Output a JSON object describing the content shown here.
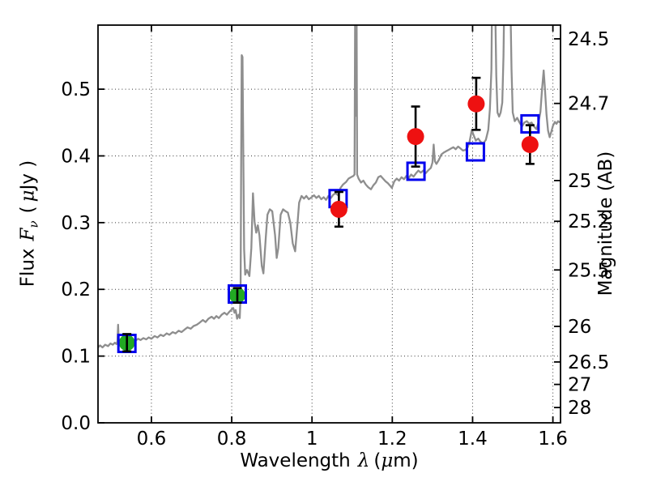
{
  "figure": {
    "background": "#ffffff"
  },
  "axes": {
    "xlabel": {
      "text": "Wavelength",
      "symbol": "λ",
      "open": "(",
      "mu": "μ",
      "close": "m)"
    },
    "ylabel_left": {
      "text": "Flux",
      "symbol": "F",
      "sub": "ν",
      "open": "(",
      "mu": "μ",
      "close": "Jy )"
    },
    "ylabel_right": "Magnitude (AB)",
    "xlim": [
      0.467,
      1.619
    ],
    "ylim": [
      0.0,
      0.596
    ],
    "x_ticks": [
      0.6,
      0.8,
      1.0,
      1.2,
      1.4,
      1.6
    ],
    "x_tick_labels": [
      "0.6",
      "0.8",
      "1",
      "1.2",
      "1.4",
      "1.6"
    ],
    "y_ticks_left": [
      0.0,
      0.1,
      0.2,
      0.3,
      0.4,
      0.5
    ],
    "y_tick_labels_left": [
      "0.0",
      "0.1",
      "0.2",
      "0.3",
      "0.4",
      "0.5"
    ],
    "y_ticks_right_mag": [
      24.5,
      24.7,
      25,
      25.2,
      25.5,
      26,
      26.5,
      27,
      28
    ],
    "y_tick_labels_right": [
      "24.5",
      "24.7",
      "25",
      "25.2",
      "25.5",
      "26",
      "26.5",
      "27",
      "28"
    ],
    "grid": true
  },
  "colors": {
    "spectrum": "#8e8e8e",
    "red_points": "#ee1111",
    "green_points": "#22aa22",
    "blue_squares": "#0000ee",
    "error_bars": "#000000",
    "grid": "#222222",
    "spine": "#000000"
  },
  "chart_data": {
    "type": "line",
    "title": "",
    "xlabel": "Wavelength lambda (micron)",
    "ylabel_left": "Flux F_nu (microJy)",
    "ylabel_right": "Magnitude (AB)",
    "xlim": [
      0.467,
      1.619
    ],
    "ylim": [
      0.0,
      0.596
    ],
    "grid": true,
    "series": [
      {
        "name": "model-spectrum",
        "style": "line",
        "points": [
          [
            0.467,
            0.113
          ],
          [
            0.472,
            0.116
          ],
          [
            0.478,
            0.113
          ],
          [
            0.485,
            0.117
          ],
          [
            0.492,
            0.115
          ],
          [
            0.498,
            0.119
          ],
          [
            0.504,
            0.117
          ],
          [
            0.509,
            0.12
          ],
          [
            0.513,
            0.118
          ],
          [
            0.5155,
            0.122
          ],
          [
            0.517,
            0.147
          ],
          [
            0.5185,
            0.125
          ],
          [
            0.521,
            0.121
          ],
          [
            0.527,
            0.124
          ],
          [
            0.533,
            0.122
          ],
          [
            0.54,
            0.124
          ],
          [
            0.547,
            0.122
          ],
          [
            0.553,
            0.125
          ],
          [
            0.56,
            0.123
          ],
          [
            0.567,
            0.126
          ],
          [
            0.573,
            0.124
          ],
          [
            0.58,
            0.127
          ],
          [
            0.587,
            0.125
          ],
          [
            0.593,
            0.128
          ],
          [
            0.6,
            0.126
          ],
          [
            0.608,
            0.13
          ],
          [
            0.615,
            0.128
          ],
          [
            0.623,
            0.132
          ],
          [
            0.63,
            0.13
          ],
          [
            0.638,
            0.134
          ],
          [
            0.645,
            0.132
          ],
          [
            0.653,
            0.136
          ],
          [
            0.66,
            0.134
          ],
          [
            0.668,
            0.138
          ],
          [
            0.675,
            0.136
          ],
          [
            0.683,
            0.14
          ],
          [
            0.69,
            0.143
          ],
          [
            0.698,
            0.141
          ],
          [
            0.705,
            0.145
          ],
          [
            0.713,
            0.147
          ],
          [
            0.72,
            0.15
          ],
          [
            0.728,
            0.154
          ],
          [
            0.735,
            0.151
          ],
          [
            0.742,
            0.156
          ],
          [
            0.75,
            0.159
          ],
          [
            0.756,
            0.156
          ],
          [
            0.762,
            0.16
          ],
          [
            0.768,
            0.157
          ],
          [
            0.775,
            0.162
          ],
          [
            0.782,
            0.165
          ],
          [
            0.788,
            0.162
          ],
          [
            0.795,
            0.167
          ],
          [
            0.8,
            0.17
          ],
          [
            0.804,
            0.172
          ],
          [
            0.807,
            0.165
          ],
          [
            0.81,
            0.169
          ],
          [
            0.8135,
            0.156
          ],
          [
            0.817,
            0.162
          ],
          [
            0.82,
            0.157
          ],
          [
            0.822,
            0.19
          ],
          [
            0.8235,
            0.38
          ],
          [
            0.825,
            0.551
          ],
          [
            0.827,
            0.548
          ],
          [
            0.829,
            0.4
          ],
          [
            0.831,
            0.26
          ],
          [
            0.8335,
            0.222
          ],
          [
            0.838,
            0.229
          ],
          [
            0.844,
            0.22
          ],
          [
            0.849,
            0.262
          ],
          [
            0.853,
            0.344
          ],
          [
            0.857,
            0.301
          ],
          [
            0.861,
            0.285
          ],
          [
            0.865,
            0.296
          ],
          [
            0.869,
            0.281
          ],
          [
            0.875,
            0.235
          ],
          [
            0.879,
            0.224
          ],
          [
            0.885,
            0.279
          ],
          [
            0.889,
            0.312
          ],
          [
            0.895,
            0.32
          ],
          [
            0.901,
            0.317
          ],
          [
            0.908,
            0.281
          ],
          [
            0.912,
            0.247
          ],
          [
            0.916,
            0.262
          ],
          [
            0.922,
            0.312
          ],
          [
            0.928,
            0.32
          ],
          [
            0.934,
            0.317
          ],
          [
            0.94,
            0.315
          ],
          [
            0.946,
            0.3
          ],
          [
            0.952,
            0.269
          ],
          [
            0.958,
            0.257
          ],
          [
            0.964,
            0.299
          ],
          [
            0.968,
            0.33
          ],
          [
            0.974,
            0.34
          ],
          [
            0.98,
            0.336
          ],
          [
            0.986,
            0.34
          ],
          [
            0.992,
            0.335
          ],
          [
            0.999,
            0.338
          ],
          [
            1.005,
            0.341
          ],
          [
            1.011,
            0.337
          ],
          [
            1.017,
            0.34
          ],
          [
            1.023,
            0.335
          ],
          [
            1.029,
            0.338
          ],
          [
            1.035,
            0.334
          ],
          [
            1.041,
            0.34
          ],
          [
            1.047,
            0.337
          ],
          [
            1.053,
            0.342
          ],
          [
            1.059,
            0.344
          ],
          [
            1.065,
            0.341
          ],
          [
            1.071,
            0.352
          ],
          [
            1.077,
            0.357
          ],
          [
            1.085,
            0.361
          ],
          [
            1.091,
            0.366
          ],
          [
            1.097,
            0.368
          ],
          [
            1.103,
            0.37
          ],
          [
            1.106,
            0.372
          ],
          [
            1.1075,
            0.64
          ],
          [
            1.1085,
            0.64
          ],
          [
            1.109,
            0.46
          ],
          [
            1.1095,
            0.64
          ],
          [
            1.111,
            0.64
          ],
          [
            1.1125,
            0.372
          ],
          [
            1.116,
            0.366
          ],
          [
            1.122,
            0.36
          ],
          [
            1.128,
            0.363
          ],
          [
            1.134,
            0.357
          ],
          [
            1.14,
            0.353
          ],
          [
            1.147,
            0.35
          ],
          [
            1.153,
            0.356
          ],
          [
            1.159,
            0.36
          ],
          [
            1.165,
            0.368
          ],
          [
            1.171,
            0.37
          ],
          [
            1.177,
            0.366
          ],
          [
            1.183,
            0.362
          ],
          [
            1.189,
            0.359
          ],
          [
            1.195,
            0.355
          ],
          [
            1.199,
            0.352
          ],
          [
            1.205,
            0.362
          ],
          [
            1.211,
            0.366
          ],
          [
            1.217,
            0.363
          ],
          [
            1.223,
            0.368
          ],
          [
            1.229,
            0.365
          ],
          [
            1.235,
            0.37
          ],
          [
            1.241,
            0.367
          ],
          [
            1.247,
            0.372
          ],
          [
            1.253,
            0.369
          ],
          [
            1.259,
            0.374
          ],
          [
            1.265,
            0.378
          ],
          [
            1.271,
            0.375
          ],
          [
            1.277,
            0.378
          ],
          [
            1.283,
            0.374
          ],
          [
            1.289,
            0.378
          ],
          [
            1.296,
            0.382
          ],
          [
            1.3,
            0.39
          ],
          [
            1.303,
            0.417
          ],
          [
            1.306,
            0.392
          ],
          [
            1.31,
            0.388
          ],
          [
            1.316,
            0.394
          ],
          [
            1.322,
            0.402
          ],
          [
            1.328,
            0.405
          ],
          [
            1.334,
            0.407
          ],
          [
            1.34,
            0.409
          ],
          [
            1.346,
            0.411
          ],
          [
            1.352,
            0.413
          ],
          [
            1.358,
            0.41
          ],
          [
            1.364,
            0.414
          ],
          [
            1.37,
            0.411
          ],
          [
            1.376,
            0.408
          ],
          [
            1.382,
            0.409
          ],
          [
            1.388,
            0.413
          ],
          [
            1.392,
            0.42
          ],
          [
            1.398,
            0.439
          ],
          [
            1.402,
            0.432
          ],
          [
            1.408,
            0.423
          ],
          [
            1.414,
            0.426
          ],
          [
            1.42,
            0.421
          ],
          [
            1.427,
            0.419
          ],
          [
            1.433,
            0.424
          ],
          [
            1.439,
            0.439
          ],
          [
            1.443,
            0.47
          ],
          [
            1.447,
            0.53
          ],
          [
            1.4485,
            0.64
          ],
          [
            1.456,
            0.64
          ],
          [
            1.459,
            0.52
          ],
          [
            1.462,
            0.465
          ],
          [
            1.466,
            0.459
          ],
          [
            1.47,
            0.465
          ],
          [
            1.474,
            0.48
          ],
          [
            1.477,
            0.55
          ],
          [
            1.479,
            0.64
          ],
          [
            1.494,
            0.64
          ],
          [
            1.497,
            0.53
          ],
          [
            1.5,
            0.465
          ],
          [
            1.505,
            0.452
          ],
          [
            1.511,
            0.457
          ],
          [
            1.517,
            0.45
          ],
          [
            1.523,
            0.444
          ],
          [
            1.529,
            0.45
          ],
          [
            1.535,
            0.452
          ],
          [
            1.541,
            0.448
          ],
          [
            1.547,
            0.45
          ],
          [
            1.553,
            0.444
          ],
          [
            1.559,
            0.44
          ],
          [
            1.564,
            0.45
          ],
          [
            1.569,
            0.466
          ],
          [
            1.573,
            0.5
          ],
          [
            1.577,
            0.528
          ],
          [
            1.58,
            0.502
          ],
          [
            1.584,
            0.462
          ],
          [
            1.588,
            0.438
          ],
          [
            1.592,
            0.428
          ],
          [
            1.596,
            0.436
          ],
          [
            1.6,
            0.445
          ],
          [
            1.605,
            0.451
          ],
          [
            1.609,
            0.448
          ],
          [
            1.613,
            0.452
          ],
          [
            1.617,
            0.45
          ]
        ]
      },
      {
        "name": "green-photometry-circles",
        "style": "filled-circle-errorbar",
        "points": [
          {
            "x": 0.539,
            "y": 0.12,
            "err": 0.013
          },
          {
            "x": 0.814,
            "y": 0.191,
            "err": 0.011
          }
        ]
      },
      {
        "name": "red-photometry-circles",
        "style": "filled-circle-errorbar",
        "points": [
          {
            "x": 1.067,
            "y": 0.32,
            "err": 0.026
          },
          {
            "x": 1.258,
            "y": 0.429,
            "err": 0.045
          },
          {
            "x": 1.409,
            "y": 0.478,
            "err": 0.039
          },
          {
            "x": 1.543,
            "y": 0.417,
            "err": 0.029
          }
        ]
      },
      {
        "name": "blue-model-squares",
        "style": "open-square",
        "points": [
          {
            "x": 0.539,
            "y": 0.119
          },
          {
            "x": 0.814,
            "y": 0.193
          },
          {
            "x": 1.065,
            "y": 0.336
          },
          {
            "x": 1.259,
            "y": 0.377
          },
          {
            "x": 1.407,
            "y": 0.406
          },
          {
            "x": 1.543,
            "y": 0.448
          }
        ]
      }
    ]
  }
}
